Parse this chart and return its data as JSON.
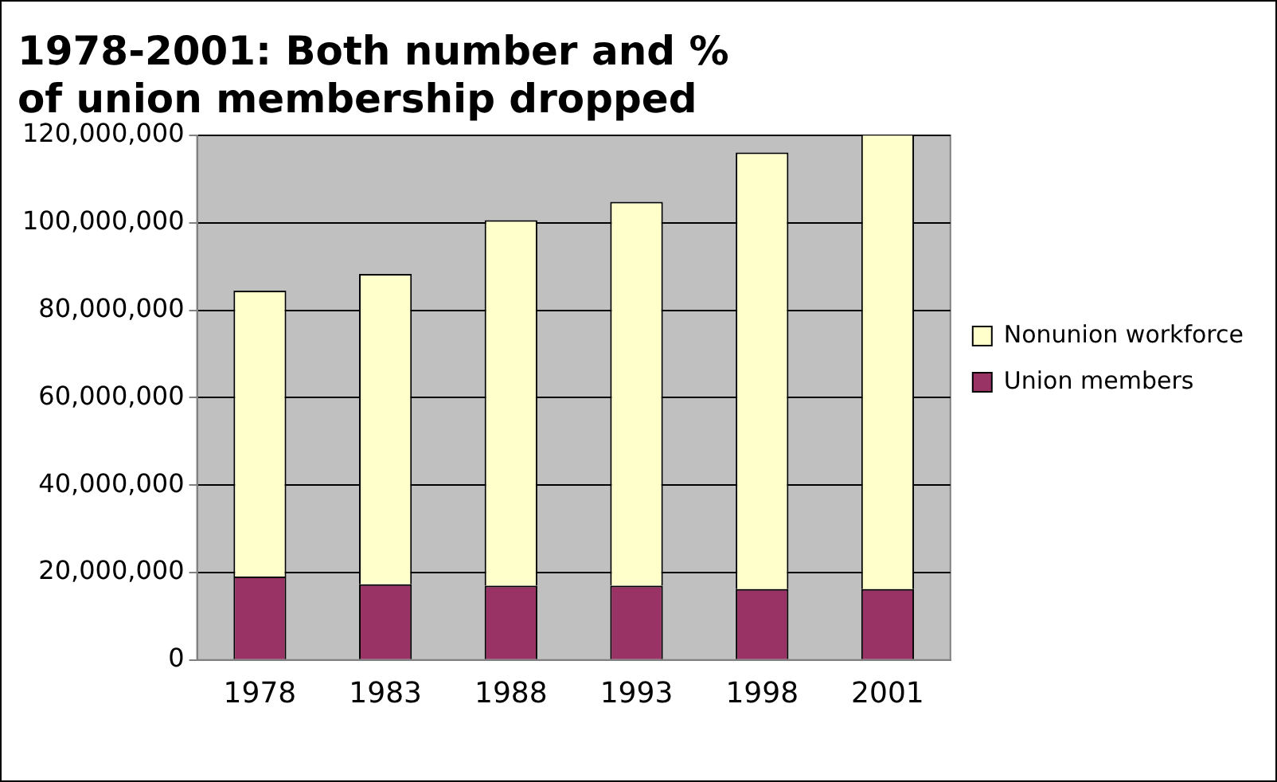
{
  "chart_data": {
    "type": "bar",
    "title": "1978-2001: Both number and %\nof union membership dropped",
    "categories": [
      "1978",
      "1983",
      "1988",
      "1993",
      "1998",
      "2001"
    ],
    "series": [
      {
        "name": "Union members",
        "color": "#993366",
        "values": [
          19100000,
          17300000,
          17000000,
          17000000,
          16200000,
          16200000
        ]
      },
      {
        "name": "Nonunion workforce",
        "color": "#ffffcc",
        "values": [
          65400000,
          71000000,
          83600000,
          87800000,
          99900000,
          104100000
        ]
      }
    ],
    "stacked": true,
    "ylim": [
      0,
      120000000
    ],
    "yticks": [
      0,
      {
        "value": 20000000,
        "label": "20,000,000"
      },
      {
        "value": 40000000,
        "label": "40,000,000"
      },
      {
        "value": 60000000,
        "label": "60,000,000"
      },
      {
        "value": 80000000,
        "label": "80,000,000"
      },
      {
        "value": 100000000,
        "label": "100,000,000"
      },
      {
        "value": 120000000,
        "label": "120,000,000"
      }
    ],
    "grid": "y",
    "legend": "right"
  }
}
